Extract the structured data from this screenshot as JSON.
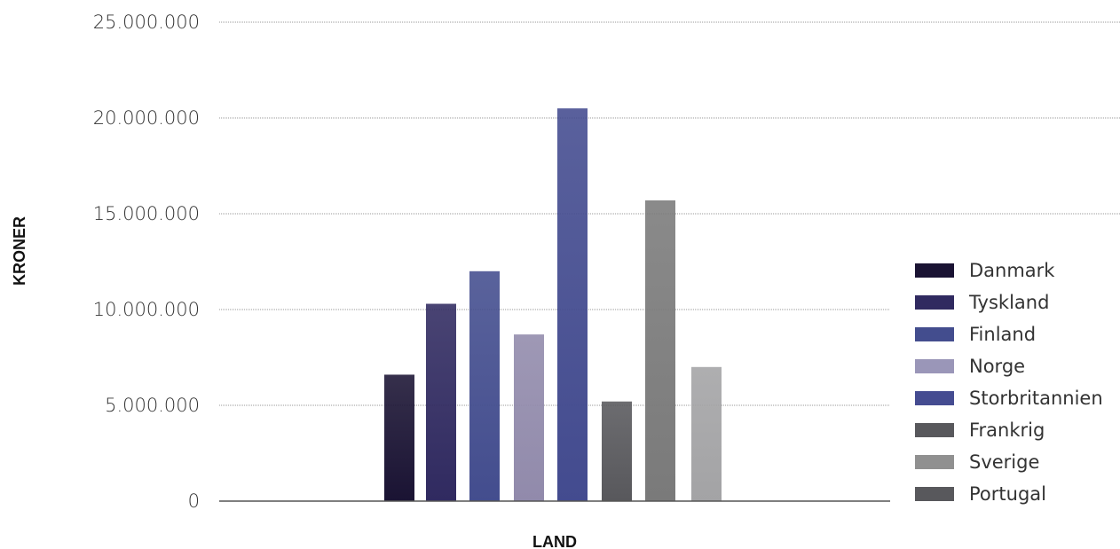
{
  "chart_data": {
    "type": "bar",
    "categories": [
      "Danmark",
      "Tyskland",
      "Finland",
      "Norge",
      "Storbritannien",
      "Frankrig",
      "Sverige",
      "Portugal"
    ],
    "values": [
      6600000,
      10300000,
      12000000,
      8700000,
      20500000,
      5200000,
      15700000,
      7000000
    ],
    "colors": [
      "#1a1333",
      "#302a60",
      "#434d8e",
      "#918aab",
      "#434b8f",
      "#58585c",
      "#7a7a7a",
      "#a3a3a5"
    ],
    "legend_colors": [
      "#1a1333",
      "#302a60",
      "#434d8e",
      "#9a96b8",
      "#454c91",
      "#58585c",
      "#909090",
      "#58585c"
    ],
    "xlabel": "LAND",
    "ylabel": "KRONER",
    "ylim": [
      0,
      25000000
    ],
    "yticks": [
      0,
      5000000,
      10000000,
      15000000,
      20000000,
      25000000
    ],
    "ytick_labels": [
      "0",
      "5.000.000",
      "10.000.000",
      "15.000.000",
      "20.000.000",
      "25.000.000"
    ],
    "grid": true,
    "legend_position": "right"
  }
}
